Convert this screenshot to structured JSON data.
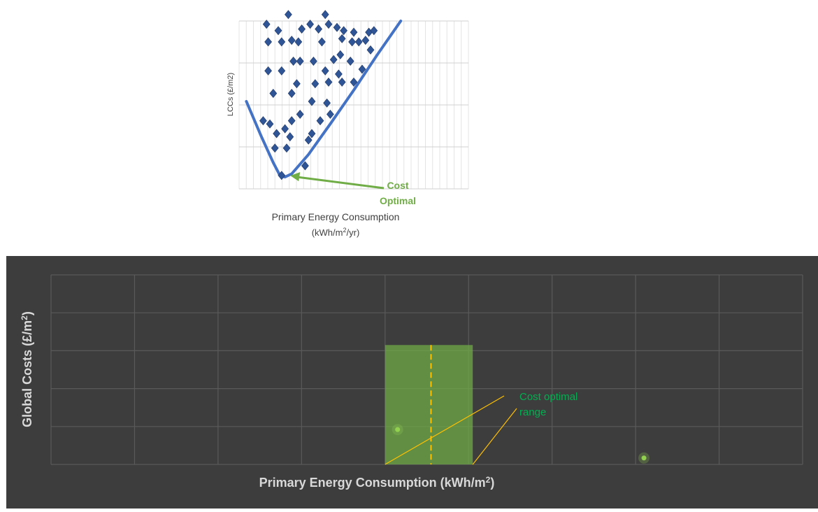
{
  "chart_data": [
    {
      "type": "scatter",
      "xlabel_line1": "Primary Energy Consumption",
      "xlabel_line2_pre": "(kWh/m",
      "xlabel_line2_sup1": "2",
      "xlabel_line2_mid": "/yr)",
      "ylabel": "LCCs (£/m2)",
      "annotation": "Cost Optimal",
      "annotation_color": "#70ad47",
      "marker_color": "#2f5597",
      "curve_color": "#4472c4",
      "xlim": [
        0,
        100
      ],
      "ylim": [
        0,
        100
      ],
      "points": [
        {
          "x": 8,
          "y": 98
        },
        {
          "x": 21,
          "y": 104
        },
        {
          "x": 34,
          "y": 98
        },
        {
          "x": 43,
          "y": 104
        },
        {
          "x": 45,
          "y": 98
        },
        {
          "x": 15,
          "y": 94
        },
        {
          "x": 29,
          "y": 95
        },
        {
          "x": 39,
          "y": 95
        },
        {
          "x": 50,
          "y": 96
        },
        {
          "x": 54,
          "y": 94
        },
        {
          "x": 60,
          "y": 93
        },
        {
          "x": 69,
          "y": 93
        },
        {
          "x": 72,
          "y": 94
        },
        {
          "x": 9,
          "y": 87
        },
        {
          "x": 17,
          "y": 87
        },
        {
          "x": 23,
          "y": 88
        },
        {
          "x": 27,
          "y": 87
        },
        {
          "x": 41,
          "y": 87
        },
        {
          "x": 53,
          "y": 89
        },
        {
          "x": 59,
          "y": 87
        },
        {
          "x": 63,
          "y": 87
        },
        {
          "x": 67,
          "y": 88
        },
        {
          "x": 70,
          "y": 82
        },
        {
          "x": 52,
          "y": 79
        },
        {
          "x": 24,
          "y": 75
        },
        {
          "x": 28,
          "y": 75
        },
        {
          "x": 36,
          "y": 75
        },
        {
          "x": 48,
          "y": 76
        },
        {
          "x": 58,
          "y": 75
        },
        {
          "x": 9,
          "y": 69
        },
        {
          "x": 17,
          "y": 69
        },
        {
          "x": 43,
          "y": 69
        },
        {
          "x": 51,
          "y": 67
        },
        {
          "x": 65,
          "y": 70
        },
        {
          "x": 26,
          "y": 61
        },
        {
          "x": 37,
          "y": 61
        },
        {
          "x": 45,
          "y": 62
        },
        {
          "x": 53,
          "y": 62
        },
        {
          "x": 60,
          "y": 62
        },
        {
          "x": 12,
          "y": 55
        },
        {
          "x": 23,
          "y": 55
        },
        {
          "x": 35,
          "y": 50
        },
        {
          "x": 44,
          "y": 49
        },
        {
          "x": 6,
          "y": 38
        },
        {
          "x": 23,
          "y": 38
        },
        {
          "x": 19,
          "y": 33
        },
        {
          "x": 46,
          "y": 42
        },
        {
          "x": 28,
          "y": 42
        },
        {
          "x": 40,
          "y": 38
        },
        {
          "x": 10,
          "y": 36
        },
        {
          "x": 14,
          "y": 30
        },
        {
          "x": 22,
          "y": 28
        },
        {
          "x": 33,
          "y": 26
        },
        {
          "x": 35,
          "y": 30
        },
        {
          "x": 13,
          "y": 21
        },
        {
          "x": 20,
          "y": 21
        },
        {
          "x": 31,
          "y": 10
        },
        {
          "x": 17,
          "y": 4
        }
      ],
      "curve": [
        {
          "x": -4,
          "y": 50
        },
        {
          "x": 5,
          "y": 28
        },
        {
          "x": 12,
          "y": 12
        },
        {
          "x": 16,
          "y": 4
        },
        {
          "x": 19,
          "y": 3
        },
        {
          "x": 23,
          "y": 5
        },
        {
          "x": 33,
          "y": 17
        },
        {
          "x": 46,
          "y": 36
        },
        {
          "x": 60,
          "y": 57
        },
        {
          "x": 74,
          "y": 79
        },
        {
          "x": 88,
          "y": 100
        }
      ],
      "optimum": {
        "x": 18,
        "y": 3
      },
      "grid": true
    },
    {
      "type": "scatter",
      "xlabel_pre": "Primary Energy Consumption (kWh/m",
      "xlabel_sup": "2",
      "xlabel_post": ")",
      "ylabel_pre": "Global Costs (£/m",
      "ylabel_sup": "2",
      "ylabel_post": ")",
      "annotation_line1": "Cost optimal",
      "annotation_line2": "range",
      "annotation_color": "#00b050",
      "range_color": "#70ad47",
      "line_color": "#ffc000",
      "point_color": "#92d050",
      "xlim": [
        0,
        9
      ],
      "ylim": [
        0,
        5
      ],
      "range": [
        4,
        5.05
      ],
      "range_top": 3.15,
      "optimum_x": 4.55,
      "points": [
        {
          "x": 4.15,
          "y": 0.92
        },
        {
          "x": 7.1,
          "y": 0.17
        }
      ],
      "grid": true
    }
  ]
}
